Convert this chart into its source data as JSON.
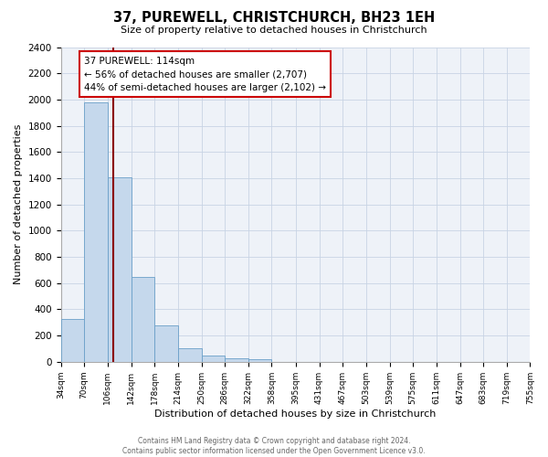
{
  "title": "37, PUREWELL, CHRISTCHURCH, BH23 1EH",
  "subtitle": "Size of property relative to detached houses in Christchurch",
  "xlabel": "Distribution of detached houses by size in Christchurch",
  "ylabel": "Number of detached properties",
  "bin_edges": [
    34,
    70,
    106,
    142,
    178,
    214,
    250,
    286,
    322,
    358,
    395,
    431,
    467,
    503,
    539,
    575,
    611,
    647,
    683,
    719,
    755
  ],
  "bin_labels": [
    "34sqm",
    "70sqm",
    "106sqm",
    "142sqm",
    "178sqm",
    "214sqm",
    "250sqm",
    "286sqm",
    "322sqm",
    "358sqm",
    "395sqm",
    "431sqm",
    "467sqm",
    "503sqm",
    "539sqm",
    "575sqm",
    "611sqm",
    "647sqm",
    "683sqm",
    "719sqm",
    "755sqm"
  ],
  "counts": [
    325,
    1975,
    1410,
    650,
    275,
    100,
    50,
    30,
    20,
    0,
    0,
    0,
    0,
    0,
    0,
    0,
    0,
    0,
    0,
    0
  ],
  "vline_x": 114,
  "bar_color": "#c5d8ec",
  "bar_edge_color": "#6a9fc8",
  "vline_color": "#8b0000",
  "annotation_title": "37 PUREWELL: 114sqm",
  "annotation_line1": "← 56% of detached houses are smaller (2,707)",
  "annotation_line2": "44% of semi-detached houses are larger (2,102) →",
  "annotation_box_color": "#ffffff",
  "annotation_box_edge": "#cc0000",
  "ylim": [
    0,
    2400
  ],
  "yticks": [
    0,
    200,
    400,
    600,
    800,
    1000,
    1200,
    1400,
    1600,
    1800,
    2000,
    2200,
    2400
  ],
  "footer_line1": "Contains HM Land Registry data © Crown copyright and database right 2024.",
  "footer_line2": "Contains public sector information licensed under the Open Government Licence v3.0.",
  "bg_color": "#ffffff",
  "plot_bg_color": "#eef2f8"
}
